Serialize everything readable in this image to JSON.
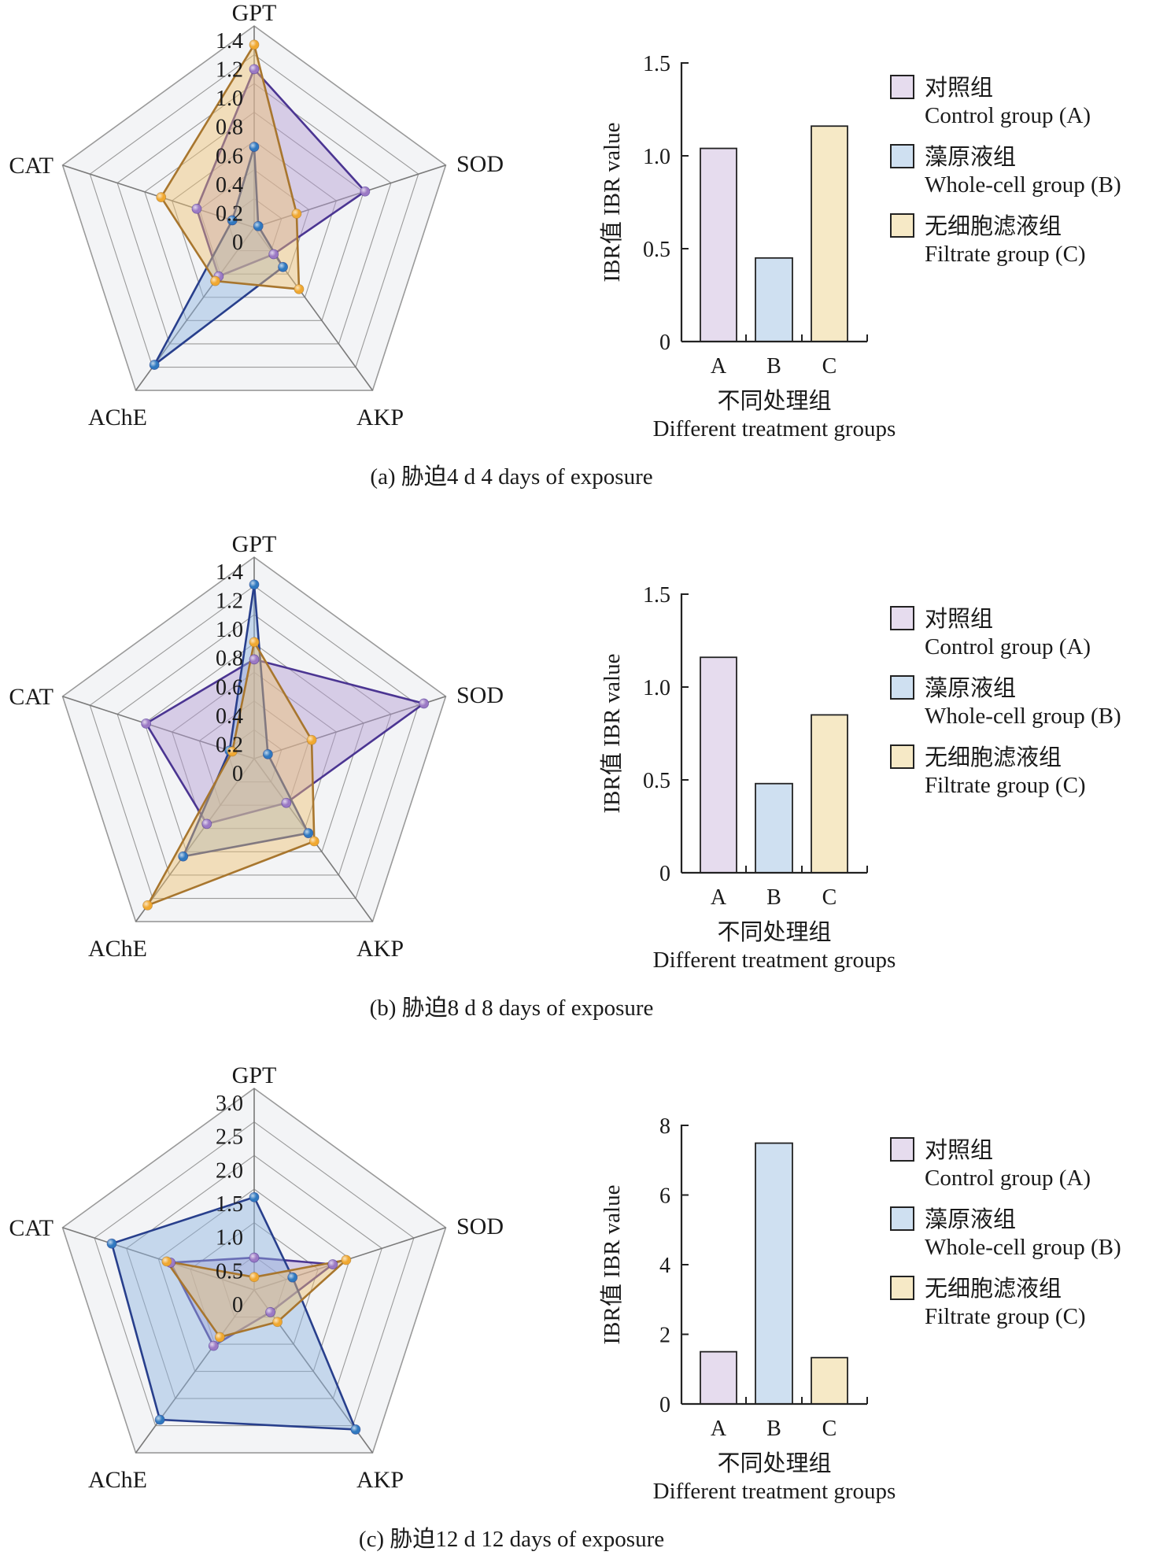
{
  "legend": [
    {
      "key": "A",
      "label_cn": "对照组",
      "label_en": "Control group (A)"
    },
    {
      "key": "B",
      "label_cn": "藻原液组",
      "label_en": "Whole-cell group (B)"
    },
    {
      "key": "C",
      "label_cn": "无细胞滤液组",
      "label_en": "Filtrate group (C)"
    }
  ],
  "colors": {
    "A": {
      "stroke": "#4b3592",
      "fill": "#b49bd2",
      "marker": "#9b79c4",
      "bar": "#e6dcee"
    },
    "B": {
      "stroke": "#283f8c",
      "fill": "#8fb3e0",
      "marker": "#2f78bf",
      "bar": "#cfe0f1"
    },
    "C": {
      "stroke": "#a8762e",
      "fill": "#f0c070",
      "marker": "#f0a830",
      "bar": "#f6e9c6"
    },
    "grid": "#9a9a9a",
    "radar_bg": "#f3f4f6"
  },
  "chart_data": [
    {
      "panel": "a",
      "caption": "(a) 胁迫4 d  4 days of exposure",
      "radar": {
        "type": "radar",
        "axes": [
          "GPT",
          "SOD",
          "AKP",
          "AChE",
          "CAT"
        ],
        "rmax": 1.4,
        "ticks": [
          "0",
          "0.2",
          "0.4",
          "0.6",
          "0.8",
          "1.0",
          "1.2",
          "1.4"
        ],
        "tick_values": [
          0,
          0.2,
          0.4,
          0.6,
          0.8,
          1.0,
          1.2,
          1.4
        ],
        "series": [
          {
            "name": "A",
            "values": [
              1.1,
              0.81,
              0.23,
              0.42,
              0.42
            ]
          },
          {
            "name": "B",
            "values": [
              0.56,
              0.03,
              0.34,
              1.18,
              0.16
            ]
          },
          {
            "name": "C",
            "values": [
              1.27,
              0.31,
              0.53,
              0.46,
              0.68
            ]
          }
        ]
      },
      "bar": {
        "type": "bar",
        "categories": [
          "A",
          "B",
          "C"
        ],
        "values": [
          1.04,
          0.45,
          1.16
        ],
        "ylim": [
          0,
          1.5
        ],
        "yticks": [
          "0",
          "0.5",
          "1.0",
          "1.5"
        ],
        "ytick_values": [
          0,
          0.5,
          1.0,
          1.5
        ],
        "ylabel": "IBR值 IBR value",
        "xlabel_cn": "不同处理组",
        "xlabel_en": "Different treatment groups"
      }
    },
    {
      "panel": "b",
      "caption": "(b) 胁迫8 d  8 days of exposure",
      "radar": {
        "type": "radar",
        "axes": [
          "GPT",
          "SOD",
          "AKP",
          "AChE",
          "CAT"
        ],
        "rmax": 1.4,
        "ticks": [
          "0",
          "0.2",
          "0.4",
          "0.6",
          "0.8",
          "1.0",
          "1.2",
          "1.4"
        ],
        "tick_values": [
          0,
          0.2,
          0.4,
          0.6,
          0.8,
          1.0,
          1.2,
          1.4
        ],
        "series": [
          {
            "name": "A",
            "values": [
              0.69,
              1.24,
              0.38,
              0.56,
              0.79
            ]
          },
          {
            "name": "B",
            "values": [
              1.21,
              0.1,
              0.64,
              0.84,
              0.18
            ]
          },
          {
            "name": "C",
            "values": [
              0.81,
              0.42,
              0.71,
              1.26,
              0.16
            ]
          }
        ]
      },
      "bar": {
        "type": "bar",
        "categories": [
          "A",
          "B",
          "C"
        ],
        "values": [
          1.16,
          0.48,
          0.85
        ],
        "ylim": [
          0,
          1.5
        ],
        "yticks": [
          "0",
          "0.5",
          "1.0",
          "1.5"
        ],
        "ytick_values": [
          0,
          0.5,
          1.0,
          1.5
        ],
        "ylabel": "IBR值 IBR value",
        "xlabel_cn": "不同处理组",
        "xlabel_en": "Different treatment groups"
      }
    },
    {
      "panel": "c",
      "caption": "(c) 胁迫12 d  12 days of exposure",
      "radar": {
        "type": "radar",
        "axes": [
          "GPT",
          "SOD",
          "AKP",
          "AChE",
          "CAT"
        ],
        "rmax": 3.0,
        "ticks": [
          "0",
          "0.5",
          "1.0",
          "1.5",
          "2.0",
          "2.5",
          "3.0"
        ],
        "tick_values": [
          0,
          0.5,
          1.0,
          1.5,
          2.0,
          2.5,
          3.0
        ],
        "series": [
          {
            "name": "A",
            "values": [
              0.48,
              1.23,
              0.41,
              1.03,
              1.31
            ]
          },
          {
            "name": "B",
            "values": [
              1.38,
              0.6,
              2.57,
              2.39,
              2.23
            ]
          },
          {
            "name": "C",
            "values": [
              0.19,
              1.44,
              0.59,
              0.87,
              1.37
            ]
          }
        ]
      },
      "bar": {
        "type": "bar",
        "categories": [
          "A",
          "B",
          "C"
        ],
        "values": [
          1.5,
          7.49,
          1.33
        ],
        "ylim": [
          0,
          8
        ],
        "yticks": [
          "0",
          "2",
          "4",
          "6",
          "8"
        ],
        "ytick_values": [
          0,
          2,
          4,
          6,
          8
        ],
        "ylabel": "IBR值 IBR value",
        "xlabel_cn": "不同处理组",
        "xlabel_en": "Different treatment groups"
      }
    }
  ]
}
